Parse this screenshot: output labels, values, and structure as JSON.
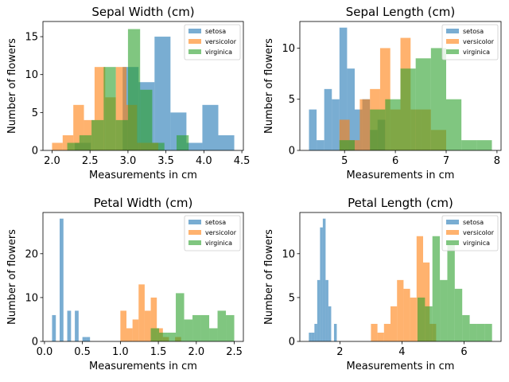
{
  "colors": {
    "setosa": "#1f77b4",
    "versicolor": "#ff7f0e",
    "virginica": "#2ca02c"
  },
  "chart_data": [
    {
      "type": "bar",
      "title": "Sepal Width (cm)",
      "xlabel": "Measurements in cm",
      "ylabel": "Number of flowers",
      "xlim": [
        1.88,
        4.52
      ],
      "ylim": [
        0,
        17
      ],
      "xticks": [
        2.0,
        2.5,
        3.0,
        3.5,
        4.0,
        4.5
      ],
      "xtick_labels": [
        "2.0",
        "2.5",
        "3.0",
        "3.5",
        "4.0",
        "4.5"
      ],
      "yticks": [
        0,
        5,
        10,
        15
      ],
      "ytick_labels": [
        "0",
        "5",
        "10",
        "15"
      ],
      "legend": "top-right",
      "series": [
        {
          "name": "setosa",
          "edges": [
            2.3,
            2.51,
            2.72,
            2.93,
            3.14,
            3.35,
            3.56,
            3.77,
            3.98,
            4.19,
            4.4
          ],
          "counts": [
            1,
            0,
            0,
            11,
            9,
            15,
            5,
            1,
            6,
            2
          ]
        },
        {
          "name": "versicolor",
          "edges": [
            2.0,
            2.14,
            2.28,
            2.42,
            2.56,
            2.7,
            2.84,
            2.98,
            3.12,
            3.26,
            3.4
          ],
          "counts": [
            1,
            2,
            6,
            4,
            11,
            7,
            11,
            6,
            1,
            1
          ]
        },
        {
          "name": "virginica",
          "edges": [
            2.2,
            2.36,
            2.52,
            2.68,
            2.84,
            3.0,
            3.16,
            3.32,
            3.48,
            3.64,
            3.8
          ],
          "counts": [
            1,
            2,
            4,
            11,
            4,
            16,
            8,
            1,
            0,
            2
          ]
        }
      ]
    },
    {
      "type": "bar",
      "title": "Sepal Length (cm)",
      "xlabel": "Measurements in cm",
      "ylabel": "Number of flowers",
      "xlim": [
        4.12,
        8.08
      ],
      "ylim": [
        0,
        12.6
      ],
      "xticks": [
        5,
        6,
        7,
        8
      ],
      "xtick_labels": [
        "5",
        "6",
        "7",
        "8"
      ],
      "yticks": [
        0,
        5,
        10
      ],
      "ytick_labels": [
        "0",
        "5",
        "10"
      ],
      "legend": "top-right",
      "series": [
        {
          "name": "setosa",
          "edges": [
            4.3,
            4.45,
            4.6,
            4.75,
            4.9,
            5.05,
            5.2,
            5.35,
            5.5,
            5.65,
            5.8
          ],
          "counts": [
            4,
            1,
            6,
            5,
            12,
            8,
            4,
            5,
            2,
            3
          ]
        },
        {
          "name": "versicolor",
          "edges": [
            4.9,
            5.1,
            5.3,
            5.5,
            5.7,
            5.9,
            6.1,
            6.3,
            6.5,
            6.7,
            7.0
          ],
          "counts": [
            3,
            1,
            5,
            6,
            10,
            4,
            11,
            4,
            4,
            2
          ]
        },
        {
          "name": "virginica",
          "edges": [
            4.9,
            5.2,
            5.5,
            5.8,
            6.1,
            6.4,
            6.7,
            7.0,
            7.3,
            7.6,
            7.9
          ],
          "counts": [
            1,
            0,
            4,
            5,
            8,
            9,
            10,
            5,
            1,
            1
          ]
        }
      ]
    },
    {
      "type": "bar",
      "title": "Petal Width (cm)",
      "xlabel": "Measurements in cm",
      "ylabel": "Number of flowers",
      "xlim": [
        -0.02,
        2.62
      ],
      "ylim": [
        0,
        29.4
      ],
      "xticks": [
        0.0,
        0.5,
        1.0,
        1.5,
        2.0,
        2.5
      ],
      "xtick_labels": [
        "0.0",
        "0.5",
        "1.0",
        "1.5",
        "2.0",
        "2.5"
      ],
      "yticks": [
        0,
        10,
        20
      ],
      "ytick_labels": [
        "0",
        "10",
        "20"
      ],
      "legend": "top-right",
      "series": [
        {
          "name": "setosa",
          "edges": [
            0.1,
            0.15,
            0.2,
            0.25,
            0.3,
            0.35,
            0.4,
            0.45,
            0.5,
            0.55,
            0.6
          ],
          "counts": [
            6,
            0,
            28,
            0,
            7,
            0,
            7,
            0,
            1,
            1
          ]
        },
        {
          "name": "versicolor",
          "edges": [
            1.0,
            1.08,
            1.16,
            1.24,
            1.32,
            1.4,
            1.48,
            1.56,
            1.64,
            1.72,
            1.8
          ],
          "counts": [
            7,
            3,
            5,
            13,
            7,
            10,
            3,
            1,
            0,
            1
          ]
        },
        {
          "name": "virginica",
          "edges": [
            1.4,
            1.51,
            1.62,
            1.73,
            1.84,
            1.95,
            2.06,
            2.17,
            2.28,
            2.39,
            2.5
          ],
          "counts": [
            3,
            2,
            2,
            11,
            5,
            6,
            6,
            3,
            7,
            6
          ]
        }
      ]
    },
    {
      "type": "bar",
      "title": "Petal Length (cm)",
      "xlabel": "Measurements in cm",
      "ylabel": "Number of flowers",
      "xlim": [
        0.71,
        7.19
      ],
      "ylim": [
        0,
        14.7
      ],
      "xticks": [
        2,
        4,
        6
      ],
      "xtick_labels": [
        "2",
        "4",
        "6"
      ],
      "yticks": [
        0,
        5,
        10
      ],
      "ytick_labels": [
        "0",
        "5",
        "10"
      ],
      "legend": "top-right",
      "series": [
        {
          "name": "setosa",
          "edges": [
            1.0,
            1.09,
            1.18,
            1.27,
            1.36,
            1.45,
            1.54,
            1.63,
            1.72,
            1.81,
            1.9
          ],
          "counts": [
            1,
            1,
            2,
            7,
            13,
            14,
            7,
            4,
            0,
            2
          ]
        },
        {
          "name": "versicolor",
          "edges": [
            3.0,
            3.21,
            3.42,
            3.63,
            3.84,
            4.05,
            4.26,
            4.47,
            4.68,
            4.89,
            5.1
          ],
          "counts": [
            2,
            1,
            2,
            4,
            7,
            6,
            5,
            12,
            9,
            2
          ]
        },
        {
          "name": "virginica",
          "edges": [
            4.5,
            4.74,
            4.98,
            5.22,
            5.46,
            5.7,
            5.94,
            6.18,
            6.42,
            6.66,
            6.9
          ],
          "counts": [
            5,
            4,
            12,
            7,
            11,
            6,
            3,
            2,
            2,
            2
          ]
        }
      ]
    }
  ]
}
